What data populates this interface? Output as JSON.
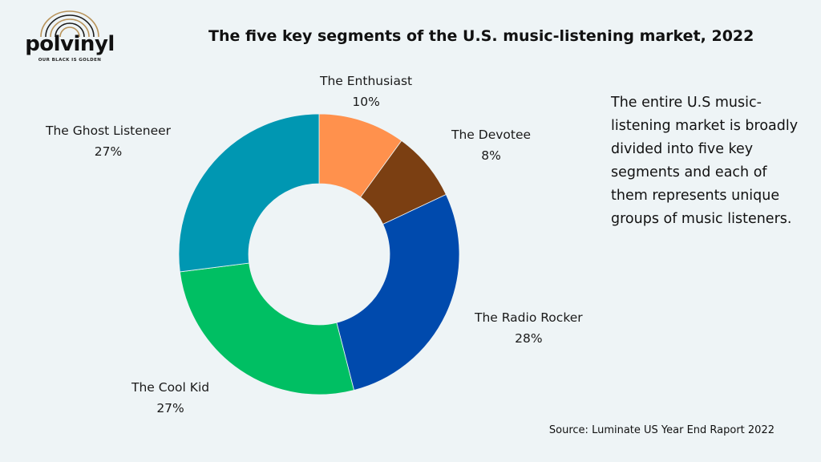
{
  "logo": {
    "wordmark": "polvinyl",
    "tagline": "OUR BLACK IS GOLDEN"
  },
  "title": "The five key segments of the U.S. music-listening market, 2022",
  "description": "The entire U.S music-listening market is broadly divided into five key segments and each of them represents unique groups of music listeners.",
  "source": "Source: Luminate US Year End Raport 2022",
  "chart_data": {
    "type": "pie",
    "donut": true,
    "title": "The five key segments of the U.S. music-listening market, 2022",
    "unit": "%",
    "slices": [
      {
        "label": "The Enthusiast",
        "value": 10,
        "display": "10%",
        "color": "#ff914d"
      },
      {
        "label": "The Devotee",
        "value": 8,
        "display": "8%",
        "color": "#7b3f12"
      },
      {
        "label": "The Radio Rocker",
        "value": 28,
        "display": "28%",
        "color": "#004aad"
      },
      {
        "label": "The Cool Kid",
        "value": 27,
        "display": "27%",
        "color": "#00bf63"
      },
      {
        "label": "The Ghost Listeneer",
        "value": 27,
        "display": "27%",
        "color": "#0097b2"
      }
    ]
  }
}
